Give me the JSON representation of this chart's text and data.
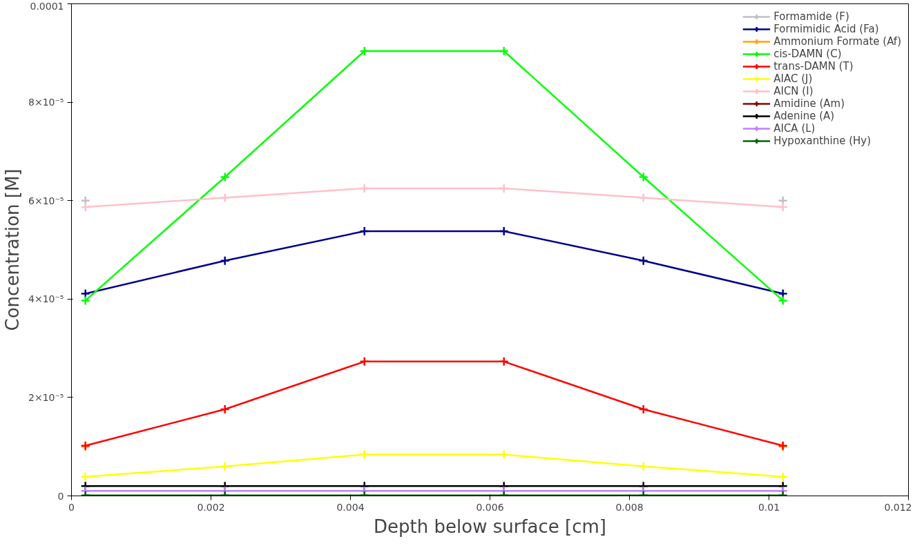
{
  "chart_data": {
    "type": "line",
    "xlabel": "Depth below surface [cm]",
    "ylabel": "Concentration [M]",
    "x": [
      0.0002,
      0.0022,
      0.0042,
      0.0062,
      0.0082,
      0.0102
    ],
    "xlim": [
      0,
      0.012
    ],
    "xticks": [
      0,
      0.002,
      0.004,
      0.006,
      0.008,
      0.01,
      0.012
    ],
    "ylim": [
      0,
      0.0001
    ],
    "yticks": [
      0,
      {
        "value": 2e-05,
        "label": "2×10⁻⁵"
      },
      {
        "value": 4e-05,
        "label": "4×10⁻⁵"
      },
      {
        "value": 6e-05,
        "label": "6×10⁻⁵"
      },
      {
        "value": 8e-05,
        "label": "8×10⁻⁵"
      },
      0.0001
    ],
    "marker": "cross",
    "line_style": "solid",
    "grid": false,
    "legend": "top right",
    "series": [
      {
        "name": "Formamide (F)",
        "color": "#c0c0c0",
        "values": [
          6e-05,
          null,
          null,
          null,
          null,
          6e-05
        ]
      },
      {
        "name": "Formimidic Acid (Fa)",
        "color": "#00008b",
        "values": [
          4.11e-05,
          4.78e-05,
          5.38e-05,
          5.38e-05,
          4.78e-05,
          4.11e-05
        ]
      },
      {
        "name": "Ammonium Formate (Af)",
        "color": "#ffa500",
        "values": [
          1e-05,
          null,
          null,
          null,
          null,
          1e-05
        ]
      },
      {
        "name": "cis-DAMN (C)",
        "color": "#00ff00",
        "values": [
          3.97e-05,
          6.48e-05,
          9.04e-05,
          9.04e-05,
          6.48e-05,
          3.97e-05
        ]
      },
      {
        "name": "trans-DAMN (T)",
        "color": "#ff0000",
        "values": [
          1.02e-05,
          1.76e-05,
          2.73e-05,
          2.73e-05,
          1.76e-05,
          1.02e-05
        ]
      },
      {
        "name": "AIAC (J)",
        "color": "#ffff00",
        "values": [
          3.9e-06,
          6e-06,
          8.4e-06,
          8.4e-06,
          6e-06,
          3.9e-06
        ]
      },
      {
        "name": "AICN (I)",
        "color": "#ffc0cb",
        "values": [
          5.87e-05,
          6.06e-05,
          6.25e-05,
          6.25e-05,
          6.06e-05,
          5.87e-05
        ]
      },
      {
        "name": "Amidine (Am)",
        "color": "#8b0000",
        "values": [
          null,
          null,
          null,
          null,
          null,
          null
        ]
      },
      {
        "name": "Adenine (A)",
        "color": "#000000",
        "values": [
          2e-06,
          2e-06,
          2e-06,
          2e-06,
          2e-06,
          2e-06
        ]
      },
      {
        "name": "AICA (L)",
        "color": "#c080ff",
        "values": [
          1e-06,
          1e-06,
          1e-06,
          1e-06,
          1e-06,
          1e-06
        ]
      },
      {
        "name": "Hypoxanthine (Hy)",
        "color": "#006400",
        "values": [
          1e-07,
          1e-07,
          1e-07,
          1e-07,
          1e-07,
          1e-07
        ]
      }
    ]
  }
}
